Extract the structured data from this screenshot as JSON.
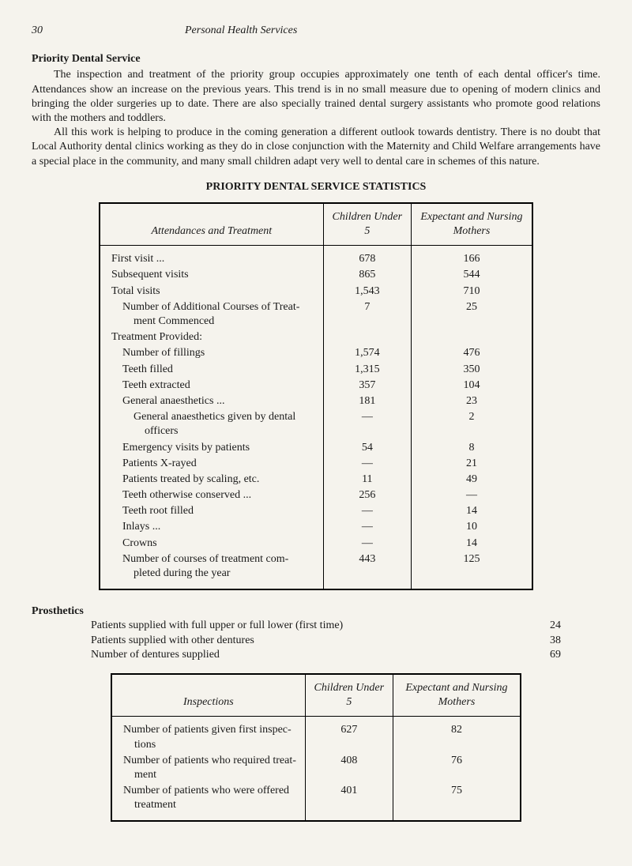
{
  "header": {
    "page_number": "30",
    "title": "Personal Health Services"
  },
  "section": {
    "title": "Priority Dental Service",
    "para1": "The inspection and treatment of the priority group occupies approximately one tenth of each dental officer's time. Attendances show an increase on the previous years. This trend is in no small measure due to opening of modern clinics and bringing the older surgeries up to date. There are also specially trained dental surgery assistants who promote good relations with the mothers and toddlers.",
    "para2": "All this work is helping to produce in the coming generation a different outlook towards dentistry. There is no doubt that Local Authority dental clinics working as they do in close conjunction with the Maternity and Child Welfare arrangements have a special place in the community, and many small children adapt very well to dental care in schemes of this nature."
  },
  "table1": {
    "title": "PRIORITY DENTAL SERVICE STATISTICS",
    "header": {
      "col1": "Attendances and Treatment",
      "col2": "Children Under 5",
      "col3": "Expectant and Nursing Mothers"
    },
    "rows": [
      {
        "label": "First visit ...",
        "c2": "678",
        "c3": "166"
      },
      {
        "label": "Subsequent visits",
        "c2": "865",
        "c3": "544"
      },
      {
        "label": "Total visits",
        "c2": "1,543",
        "c3": "710"
      },
      {
        "label": "Number of Additional Courses of Treatment Commenced",
        "c2": "7",
        "c3": "25",
        "indent": true
      },
      {
        "label": "Treatment Provided:",
        "c2": "",
        "c3": ""
      },
      {
        "label": "Number of fillings",
        "c2": "1,574",
        "c3": "476",
        "indent": true
      },
      {
        "label": "Teeth filled",
        "c2": "1,315",
        "c3": "350",
        "indent": true
      },
      {
        "label": "Teeth extracted",
        "c2": "357",
        "c3": "104",
        "indent": true
      },
      {
        "label": "General anaesthetics ...",
        "c2": "181",
        "c3": "23",
        "indent": true
      },
      {
        "label": "General anaesthetics given by dental officers",
        "c2": "—",
        "c3": "2",
        "indent2": true
      },
      {
        "label": "Emergency visits by patients",
        "c2": "54",
        "c3": "8",
        "indent": true
      },
      {
        "label": "Patients X-rayed",
        "c2": "—",
        "c3": "21",
        "indent": true
      },
      {
        "label": "Patients treated by scaling, etc.",
        "c2": "11",
        "c3": "49",
        "indent": true
      },
      {
        "label": "Teeth otherwise conserved ...",
        "c2": "256",
        "c3": "—",
        "indent": true
      },
      {
        "label": "Teeth root filled",
        "c2": "—",
        "c3": "14",
        "indent": true
      },
      {
        "label": "Inlays ...",
        "c2": "—",
        "c3": "10",
        "indent": true
      },
      {
        "label": "Crowns",
        "c2": "—",
        "c3": "14",
        "indent": true
      },
      {
        "label": "Number of courses of treatment completed during the year",
        "c2": "443",
        "c3": "125",
        "indent": true
      }
    ]
  },
  "prosthetics": {
    "title": "Prosthetics",
    "lines": [
      {
        "label": "Patients supplied with full upper or full lower (first time)",
        "val": "24"
      },
      {
        "label": "Patients supplied with other dentures",
        "val": "38"
      },
      {
        "label": "Number of dentures supplied",
        "val": "69"
      }
    ]
  },
  "table2": {
    "header": {
      "col1": "Inspections",
      "col2": "Children Under 5",
      "col3": "Expectant and Nursing Mothers"
    },
    "rows": [
      {
        "label": "Number of patients given first inspections",
        "c2": "627",
        "c3": "82"
      },
      {
        "label": "Number of patients who required treatment",
        "c2": "408",
        "c3": "76"
      },
      {
        "label": "Number of patients who were offered treatment",
        "c2": "401",
        "c3": "75"
      }
    ]
  }
}
